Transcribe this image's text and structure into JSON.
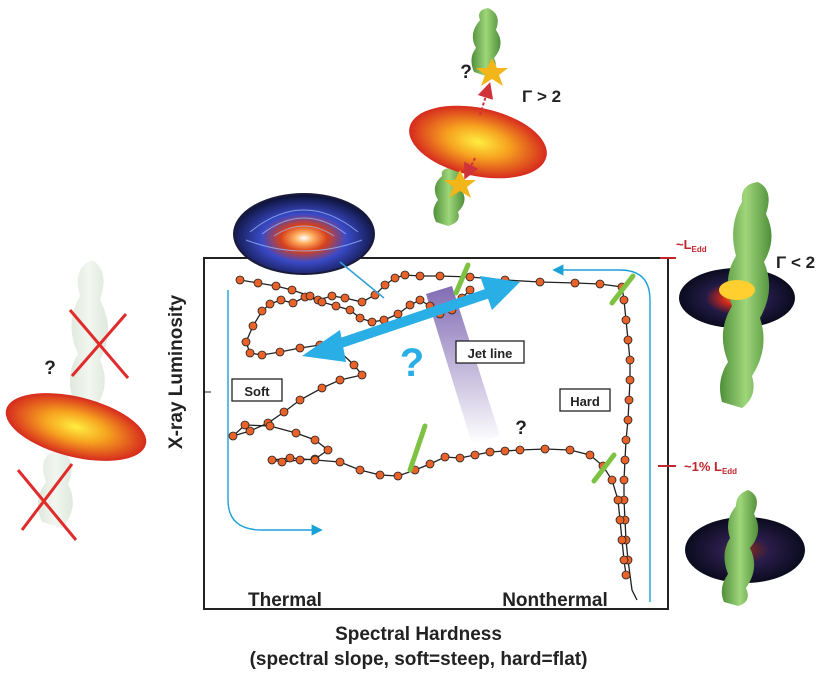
{
  "axes": {
    "ylabel": "X-ray Luminosity",
    "xlabel": "Spectral Hardness",
    "xlabel_sub": "(spectral slope, soft=steep, hard=flat)"
  },
  "labels": {
    "soft": "Soft",
    "hard": "Hard",
    "thermal": "Thermal",
    "nonthermal": "Nonthermal",
    "jet_line": "Jet line",
    "question_big": "?",
    "question_hard": "?",
    "question_top": "?",
    "question_left": "?",
    "gamma_gt": "Γ > 2",
    "gamma_lt": "Γ < 2"
  },
  "luminosity_markers": {
    "eddington": {
      "prefix": "~L",
      "sub": "Edd"
    },
    "one_percent": {
      "prefix": "~1% L",
      "sub": "Edd"
    }
  },
  "colors": {
    "track_point": "#e8622a",
    "track_line": "#222222",
    "arrow_blue": "#29aee6",
    "jet_line_band": "#8a7bb8",
    "green_marker": "#7dc242",
    "red_marker": "#c0262d",
    "thin_arrow": "#1ba1d6"
  },
  "icons": [
    "disk-jet-illustration",
    "disk-no-jet-illustration",
    "disk-with-jet-hard",
    "disk-with-jet-low",
    "accretion-disk-photo"
  ]
}
